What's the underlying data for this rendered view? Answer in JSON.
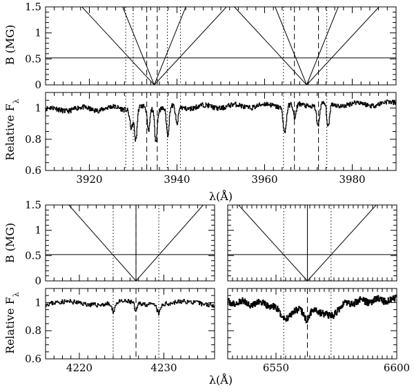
{
  "chart_data": [
    {
      "id": "top",
      "type": "line",
      "x_range": [
        3910,
        3990
      ],
      "x_ticks": [
        3920,
        3940,
        3960,
        3980
      ],
      "x_tick_labels": [
        "3920",
        "3940",
        "3960",
        "3980"
      ],
      "xlabel": "λ(Å)",
      "b_panel": {
        "ylabel": "B (MG)",
        "ylim": [
          0,
          1.5
        ],
        "y_ticks": [
          0,
          0.5,
          1,
          1.5
        ],
        "y_tick_labels": [
          "0",
          "0.5",
          "1",
          "1.5"
        ],
        "reference_field": 0.52,
        "zeeman_fans": [
          {
            "center": 3934.8,
            "components": [
              3929.6,
              3933.5,
              3936.1,
              3940.0
            ],
            "outer_fan_rate_per_MG": 11.0,
            "inner_fan_rate_per_MG": 4.8
          },
          {
            "center": 3969.6,
            "components": [
              3964.4,
              3968.3,
              3970.9,
              3974.8
            ],
            "outer_fan_rate_per_MG": 11.0,
            "inner_fan_rate_per_MG": 4.8
          }
        ]
      },
      "flux_panel": {
        "ylabel": "Relative F",
        "ylabel_subscript": "λ",
        "ylim": [
          0.6,
          1.1
        ],
        "y_ticks": [
          0.6,
          0.8,
          1
        ],
        "y_tick_labels": [
          "0.6",
          "0.8",
          "1"
        ],
        "continuum": {
          "start": 0.99,
          "end": 1.03
        },
        "absorption_features": [
          {
            "center": 3929.6,
            "depth": 0.12,
            "width": 0.35
          },
          {
            "center": 3930.6,
            "depth": 0.21,
            "width": 0.3
          },
          {
            "center": 3933.5,
            "depth": 0.16,
            "width": 0.3
          },
          {
            "center": 3935.2,
            "depth": 0.2,
            "width": 0.3
          },
          {
            "center": 3937.9,
            "depth": 0.18,
            "width": 0.3
          },
          {
            "center": 3940.0,
            "depth": 0.12,
            "width": 0.3
          },
          {
            "center": 3964.6,
            "depth": 0.17,
            "width": 0.35
          },
          {
            "center": 3966.9,
            "depth": 0.1,
            "width": 0.3
          },
          {
            "center": 3972.2,
            "depth": 0.14,
            "width": 0.3
          },
          {
            "center": 3974.5,
            "depth": 0.16,
            "width": 0.3
          }
        ]
      },
      "dotted_markers": [
        3928.3,
        3930.0,
        3937.8,
        3940.8,
        3964.3,
        3974.2
      ],
      "dashed_markers": [
        3933.1,
        3935.5,
        3966.8,
        3972.3
      ]
    },
    {
      "id": "bottom-left",
      "type": "line",
      "x_range": [
        4216,
        4236
      ],
      "x_ticks": [
        4220,
        4230
      ],
      "x_tick_labels": [
        "4220",
        "4230"
      ],
      "b_panel": {
        "ylabel": "B (MG)",
        "ylim": [
          0,
          1.5
        ],
        "y_ticks": [
          0,
          0.5,
          1,
          1.5
        ],
        "y_tick_labels": [
          "0",
          "0.5",
          "1",
          "1.5"
        ],
        "reference_field": 0.52,
        "zeeman_fans": [
          {
            "center": 4226.7,
            "components": [
              4224.0,
              4229.4
            ],
            "outer_fan_rate_per_MG": 5.3,
            "vertical": true
          }
        ]
      },
      "flux_panel": {
        "ylabel": "Relative F",
        "ylabel_subscript": "λ",
        "ylim": [
          0.6,
          1.1
        ],
        "y_ticks": [
          0.6,
          0.8,
          1
        ],
        "y_tick_labels": [
          "0.6",
          "0.8",
          "1"
        ],
        "continuum": {
          "start": 0.995,
          "end": 0.995
        },
        "absorption_features": [
          {
            "center": 4224.0,
            "depth": 0.06,
            "width": 0.2
          },
          {
            "center": 4226.7,
            "depth": 0.07,
            "width": 0.15
          },
          {
            "center": 4229.4,
            "depth": 0.06,
            "width": 0.2
          }
        ]
      },
      "dotted_markers": [
        4224.0,
        4229.4
      ],
      "dashed_markers": [
        4226.7
      ]
    },
    {
      "id": "bottom-right",
      "type": "line",
      "x_range": [
        6530,
        6600
      ],
      "x_ticks": [
        6550,
        6600
      ],
      "x_tick_labels": [
        "6550",
        "6600"
      ],
      "xlabel": "λ(Å)",
      "b_panel": {
        "ylim": [
          0,
          1.5
        ],
        "y_ticks": [
          0,
          0.5,
          1,
          1.5
        ],
        "reference_field": 0.52,
        "zeeman_fans": [
          {
            "center": 6563.0,
            "components": [
              6553.2,
              6572.8
            ],
            "outer_fan_rate_per_MG": 19.0,
            "vertical": true
          }
        ]
      },
      "flux_panel": {
        "ylim": [
          0.6,
          1.1
        ],
        "y_ticks": [
          0.6,
          0.8,
          1
        ],
        "continuum": {
          "start": 1.0,
          "end": 1.02
        },
        "absorption_features": [
          {
            "center": 6554.0,
            "depth": 0.08,
            "width": 3.0
          },
          {
            "center": 6563.0,
            "depth": 0.1,
            "width": 1.2
          },
          {
            "center": 6572.0,
            "depth": 0.08,
            "width": 3.0
          },
          {
            "center": 6563.0,
            "depth": 0.04,
            "width": 12.0
          }
        ]
      },
      "dotted_markers": [
        6553.2,
        6572.8
      ],
      "dashed_markers": [
        6563.0
      ]
    }
  ]
}
